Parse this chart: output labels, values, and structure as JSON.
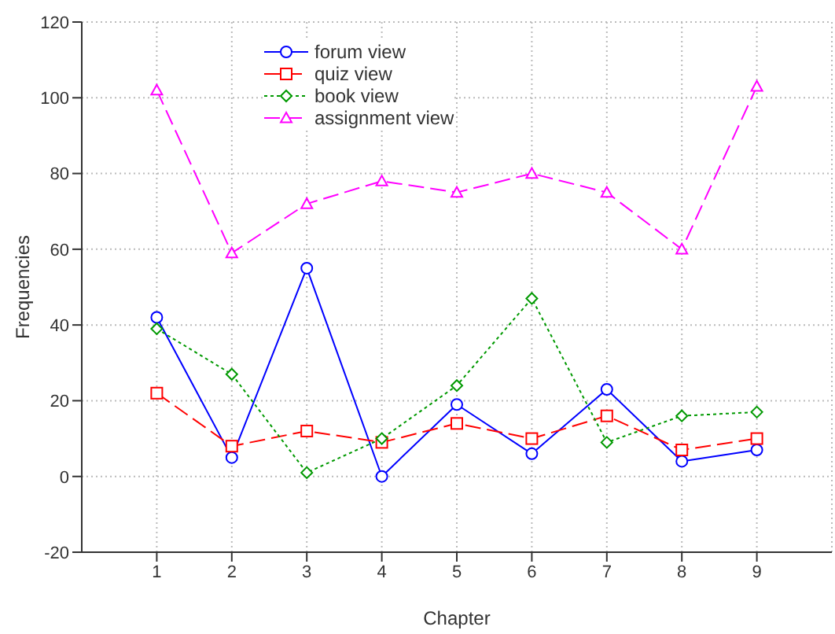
{
  "chart_data": {
    "type": "line",
    "xlabel": "Chapter",
    "ylabel": "Frequencies",
    "x": [
      1,
      2,
      3,
      4,
      5,
      6,
      7,
      8,
      9
    ],
    "xlim": [
      0,
      10
    ],
    "xticks": [
      1,
      2,
      3,
      4,
      5,
      6,
      7,
      8,
      9
    ],
    "ylim": [
      -20,
      120
    ],
    "yticks": [
      -20,
      0,
      20,
      40,
      60,
      80,
      100,
      120
    ],
    "grid": true,
    "legend": "top left",
    "series": [
      {
        "name": "forum view",
        "color": "#0000ff",
        "marker": "circle",
        "line_style": "solid",
        "values": [
          42,
          5,
          55,
          0,
          19,
          6,
          23,
          4,
          7
        ]
      },
      {
        "name": "quiz view",
        "color": "#ff0000",
        "marker": "square",
        "line_style": "dashed",
        "values": [
          22,
          8,
          12,
          9,
          14,
          10,
          16,
          7,
          10
        ]
      },
      {
        "name": "book view",
        "color": "#009900",
        "marker": "diamond",
        "line_style": "dotted",
        "values": [
          39,
          27,
          1,
          10,
          24,
          47,
          9,
          16,
          17
        ]
      },
      {
        "name": "assignment view",
        "color": "#ff00ff",
        "marker": "triangle",
        "line_style": "dashed",
        "values": [
          102,
          59,
          72,
          78,
          75,
          80,
          75,
          60,
          103
        ]
      }
    ]
  }
}
